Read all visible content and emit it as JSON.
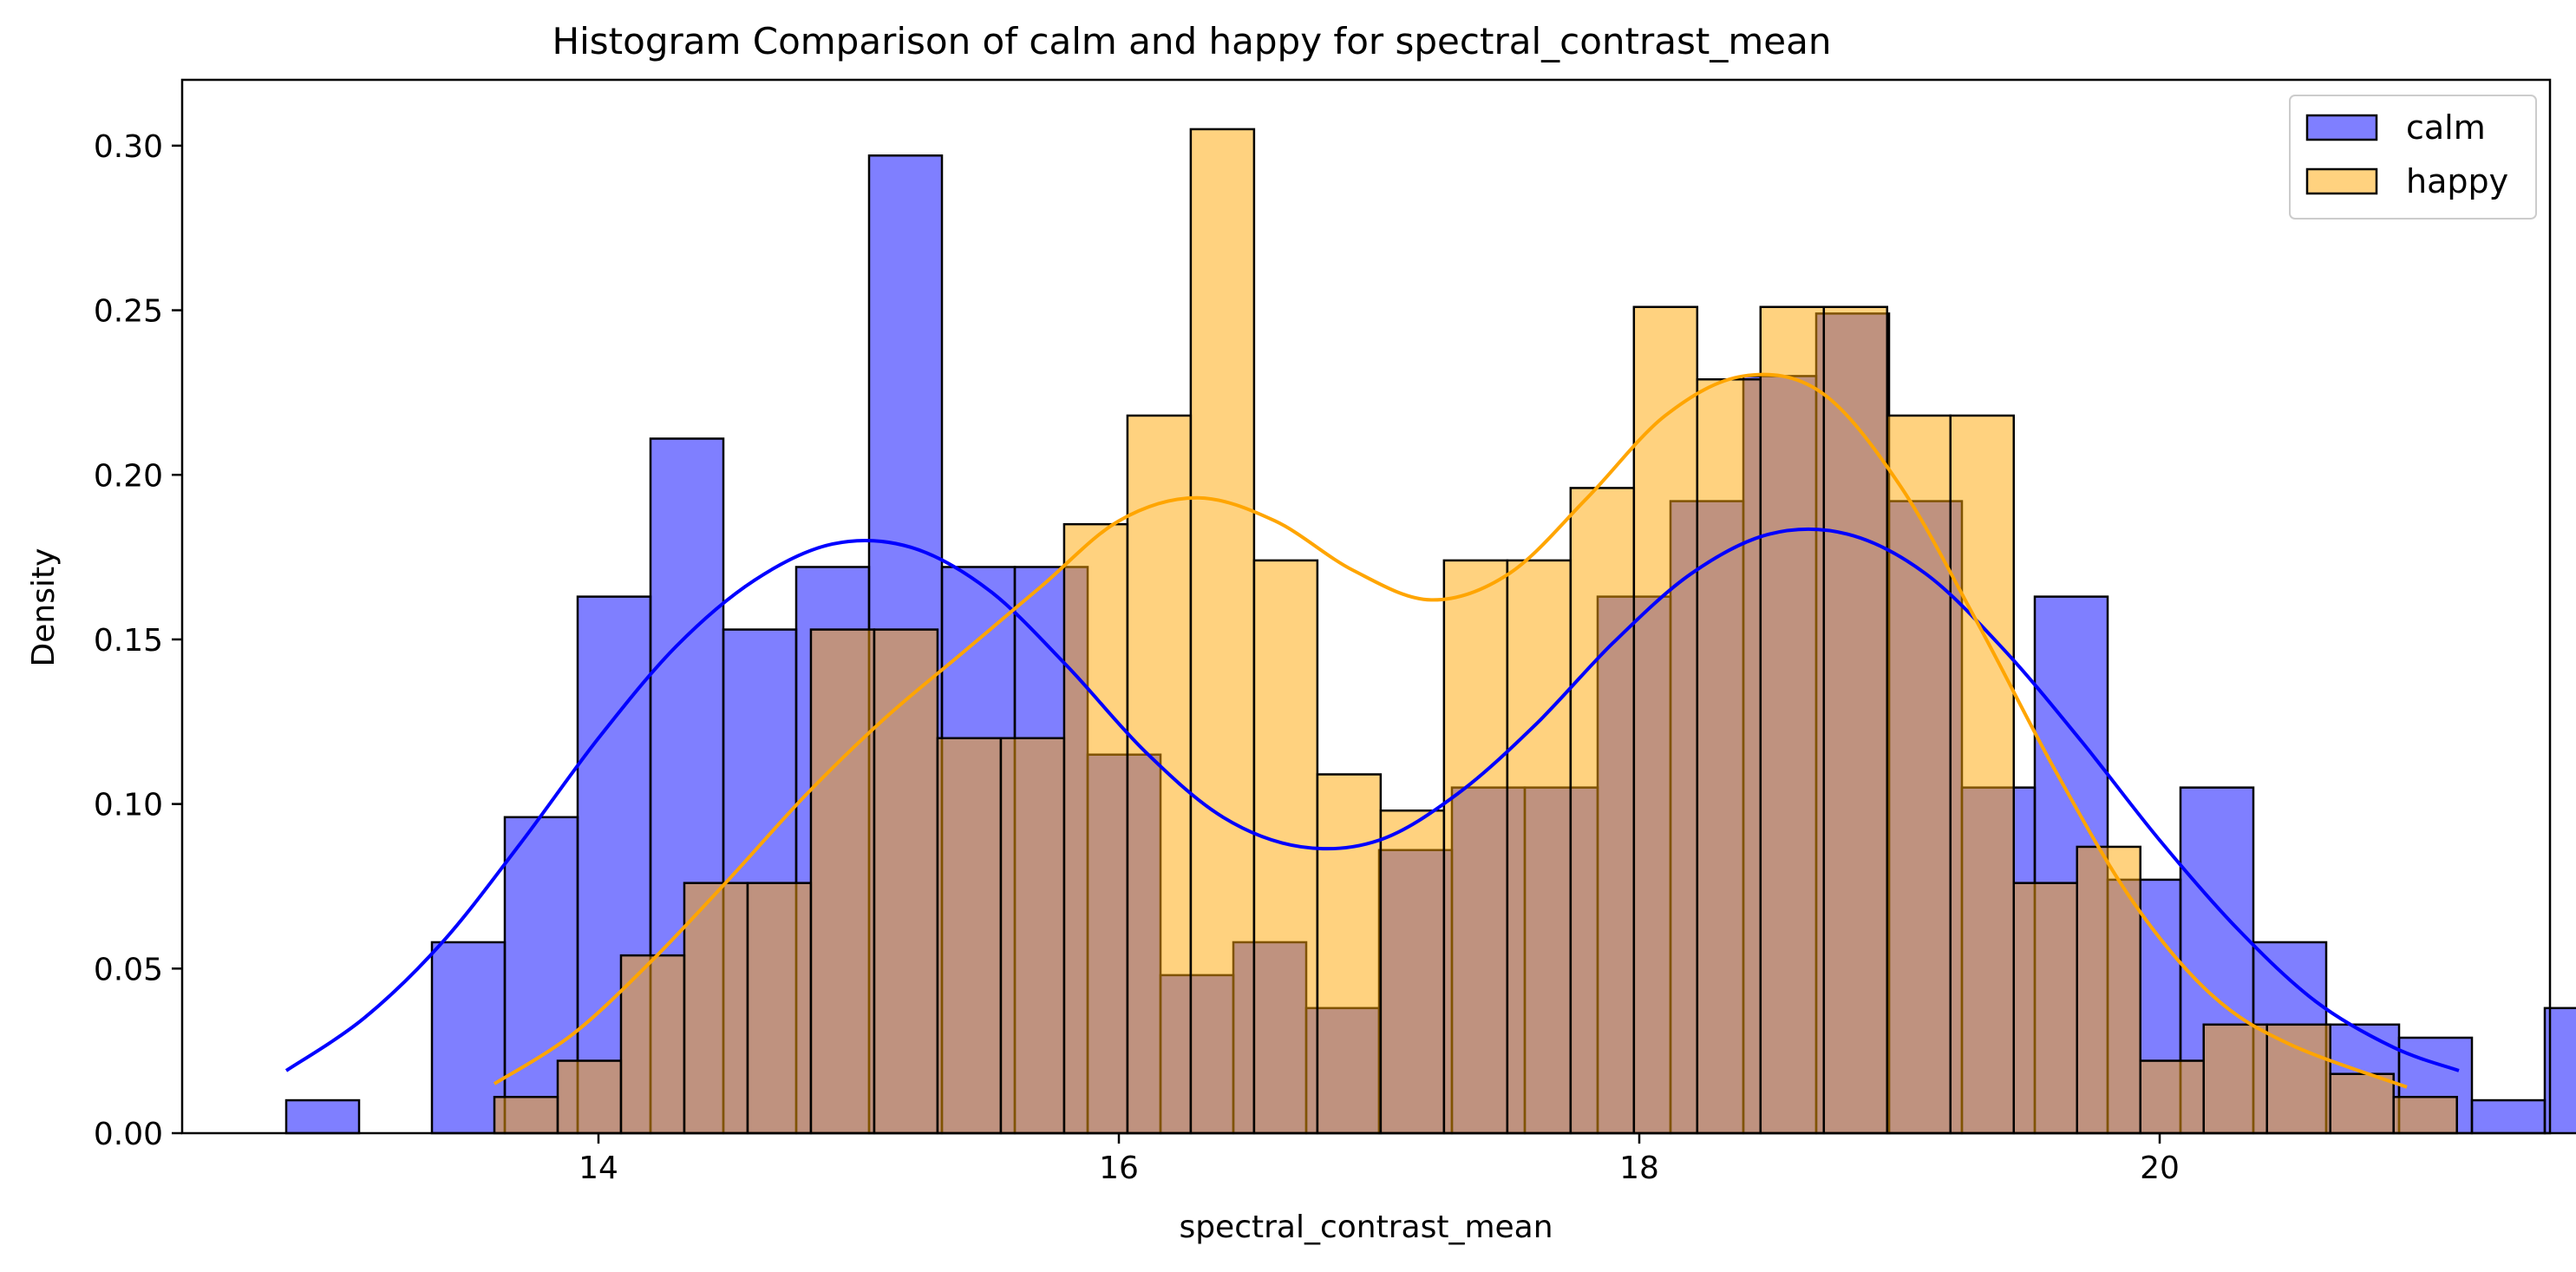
{
  "chart_data": {
    "type": "histogram",
    "title": "Histogram Comparison of calm and happy for spectral_contrast_mean",
    "xlabel": "spectral_contrast_mean",
    "ylabel": "Density",
    "xlim": [
      12.4,
      21.5
    ],
    "ylim": [
      0,
      0.32
    ],
    "x_ticks": [
      14,
      16,
      18,
      20
    ],
    "y_ticks": [
      0.0,
      0.05,
      0.1,
      0.15,
      0.2,
      0.25,
      0.3
    ],
    "x_tick_labels": [
      "14",
      "16",
      "18",
      "20"
    ],
    "y_tick_labels": [
      "0.00",
      "0.05",
      "0.10",
      "0.15",
      "0.20",
      "0.25",
      "0.30"
    ],
    "grid": false,
    "legend_position": "top-right",
    "series": [
      {
        "name": "calm",
        "color": "#0000ff",
        "bin_start": 12.8,
        "bin_width": 0.28,
        "values": [
          0.01,
          0.0,
          0.058,
          0.096,
          0.163,
          0.211,
          0.153,
          0.172,
          0.297,
          0.172,
          0.172,
          0.115,
          0.048,
          0.058,
          0.038,
          0.086,
          0.105,
          0.105,
          0.163,
          0.192,
          0.23,
          0.249,
          0.192,
          0.105,
          0.163,
          0.077,
          0.105,
          0.058,
          0.033,
          0.029,
          0.01,
          0.038
        ],
        "kde_x": [
          12.8,
          13.1,
          13.4,
          13.7,
          14.0,
          14.3,
          14.6,
          14.9,
          15.2,
          15.5,
          15.8,
          16.1,
          16.4,
          16.7,
          17.0,
          17.3,
          17.6,
          17.9,
          18.2,
          18.5,
          18.8,
          19.1,
          19.4,
          19.7,
          20.0,
          20.3,
          20.6,
          20.9,
          21.15
        ],
        "kde_y": [
          0.019,
          0.035,
          0.058,
          0.088,
          0.12,
          0.148,
          0.168,
          0.179,
          0.178,
          0.165,
          0.142,
          0.116,
          0.096,
          0.087,
          0.089,
          0.103,
          0.124,
          0.149,
          0.17,
          0.182,
          0.182,
          0.17,
          0.147,
          0.119,
          0.089,
          0.062,
          0.04,
          0.026,
          0.019
        ]
      },
      {
        "name": "happy",
        "color": "#ffa500",
        "bin_start": 13.6,
        "bin_width": 0.2433,
        "values": [
          0.011,
          0.022,
          0.054,
          0.076,
          0.076,
          0.153,
          0.153,
          0.12,
          0.12,
          0.185,
          0.218,
          0.305,
          0.174,
          0.109,
          0.098,
          0.174,
          0.174,
          0.196,
          0.251,
          0.229,
          0.251,
          0.251,
          0.218,
          0.218,
          0.076,
          0.087,
          0.022,
          0.033,
          0.033,
          0.018,
          0.011
        ],
        "kde_x": [
          13.6,
          13.9,
          14.2,
          14.5,
          14.8,
          15.1,
          15.4,
          15.7,
          16.0,
          16.3,
          16.6,
          16.9,
          17.2,
          17.5,
          17.8,
          18.1,
          18.4,
          18.7,
          19.0,
          19.3,
          19.6,
          19.9,
          20.2,
          20.5,
          20.95
        ],
        "kde_y": [
          0.015,
          0.03,
          0.052,
          0.077,
          0.103,
          0.126,
          0.146,
          0.166,
          0.186,
          0.193,
          0.186,
          0.171,
          0.162,
          0.17,
          0.193,
          0.218,
          0.23,
          0.225,
          0.197,
          0.155,
          0.11,
          0.07,
          0.042,
          0.027,
          0.014
        ]
      }
    ]
  }
}
